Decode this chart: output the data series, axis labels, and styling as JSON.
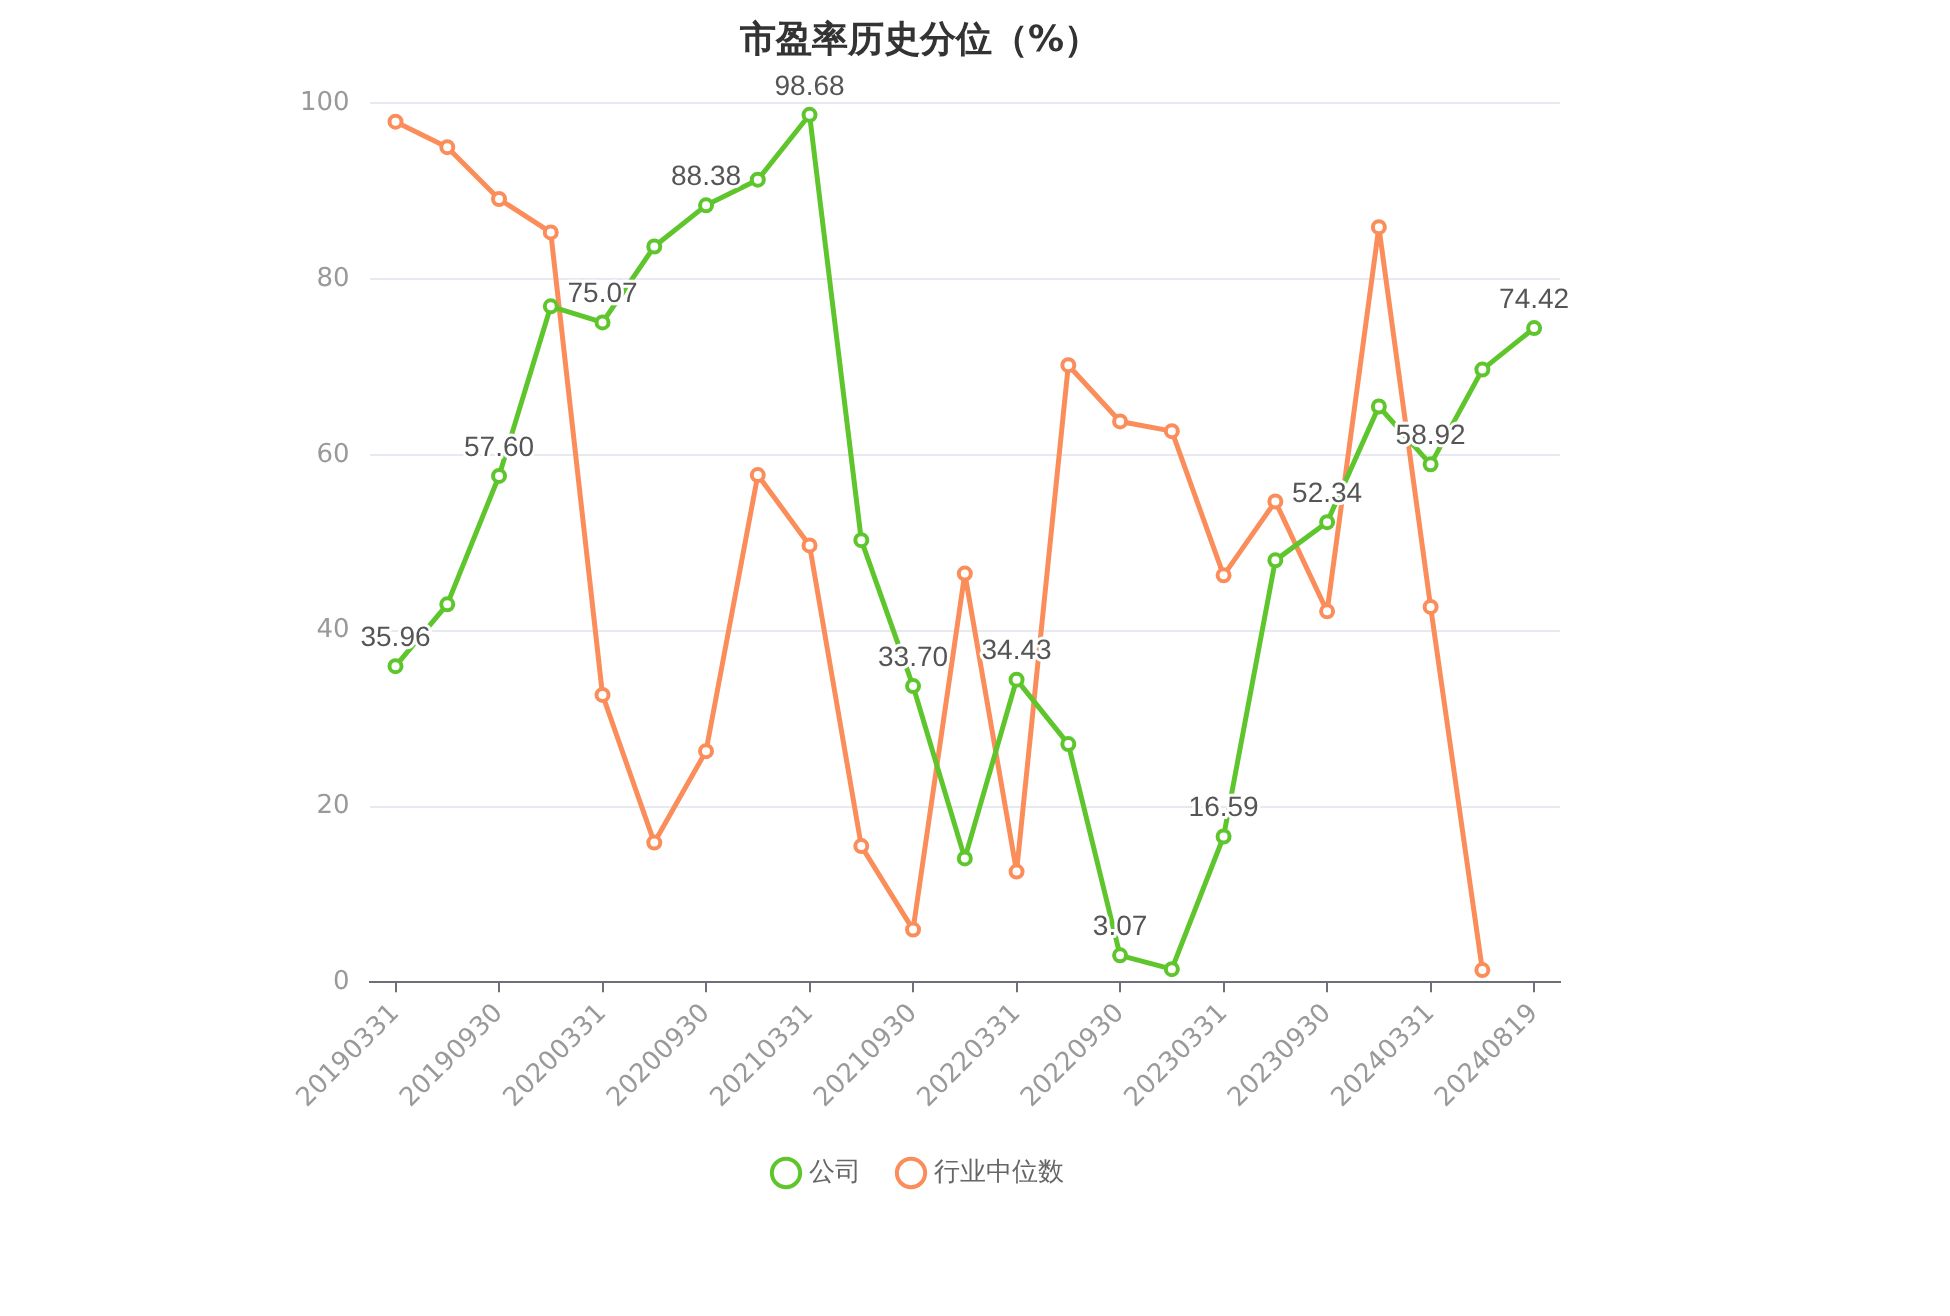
{
  "chart_data": {
    "type": "line",
    "title": "市盈率历史分位（%）",
    "categories": [
      "20190331",
      null,
      "20190930",
      null,
      "20200331",
      null,
      "20200930",
      null,
      "20210331",
      null,
      "20210930",
      null,
      "20220331",
      null,
      "20220930",
      null,
      "20230331",
      null,
      "20230930",
      null,
      "20240331",
      null,
      "20240819"
    ],
    "series": [
      {
        "name": "公司",
        "color": "#5ec62c",
        "values": [
          35.96,
          43.0,
          57.6,
          76.9,
          75.07,
          83.7,
          88.38,
          91.3,
          98.68,
          50.3,
          33.7,
          14.1,
          34.43,
          27.1,
          3.07,
          1.5,
          16.59,
          48.0,
          52.34,
          65.5,
          58.92,
          69.7,
          74.42
        ],
        "value_labels": [
          "35.96",
          null,
          "57.60",
          null,
          "75.07",
          null,
          "88.38",
          null,
          "98.68",
          null,
          "33.70",
          null,
          "34.43",
          null,
          "3.07",
          null,
          "16.59",
          null,
          "52.34",
          null,
          "58.92",
          null,
          "74.42"
        ]
      },
      {
        "name": "行业中位数",
        "color": "#fb8d5b",
        "values": [
          97.9,
          95.0,
          89.1,
          85.3,
          32.7,
          15.9,
          26.3,
          57.7,
          49.7,
          15.5,
          6.0,
          46.5,
          12.6,
          70.2,
          63.8,
          62.7,
          46.3,
          54.7,
          42.2,
          85.9,
          42.7,
          1.4,
          null
        ]
      }
    ],
    "ylim": [
      0,
      100
    ],
    "yticks": [
      0,
      20,
      40,
      60,
      80,
      100
    ],
    "grid": "y",
    "legend": "bottom",
    "marker": "circle",
    "line_style": "solid"
  }
}
